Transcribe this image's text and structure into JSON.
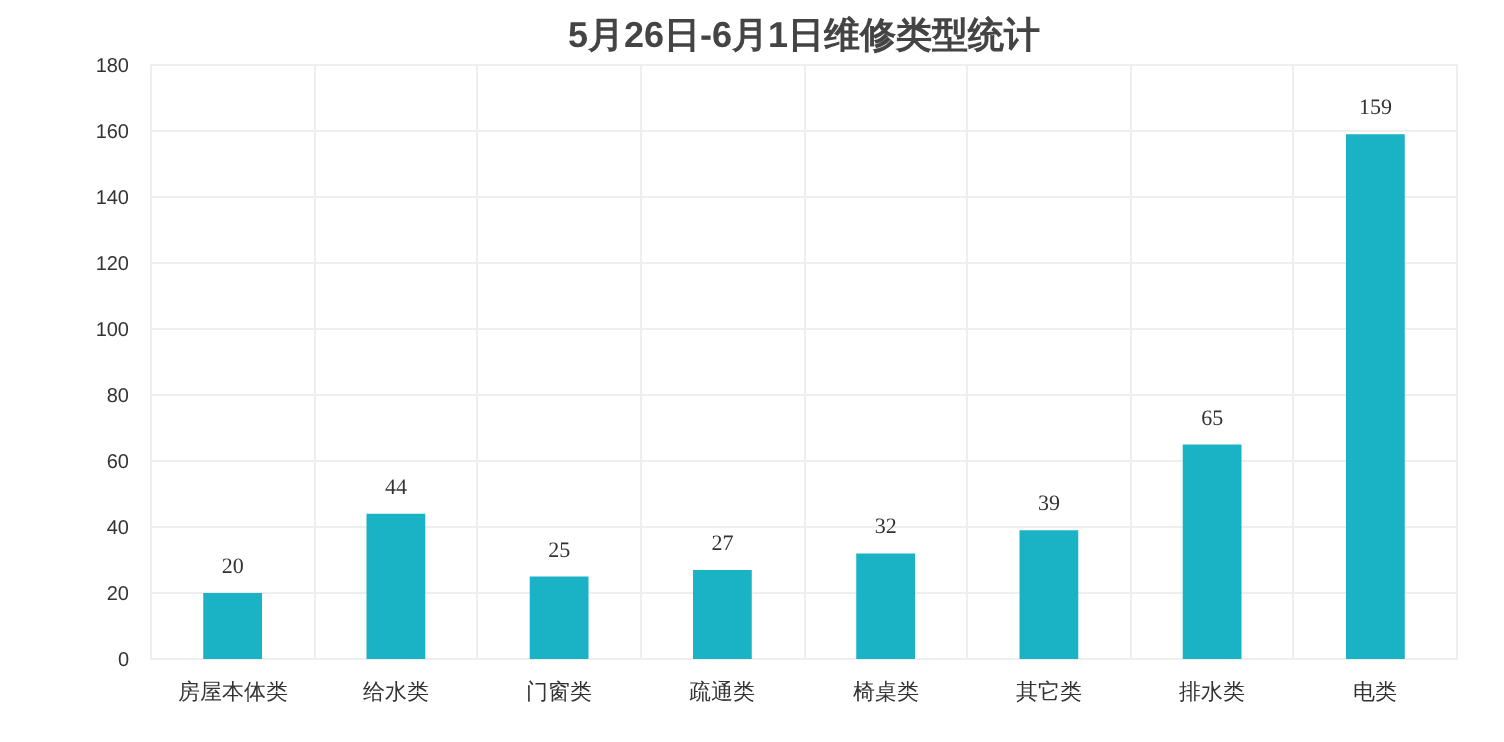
{
  "chart_data": {
    "type": "bar",
    "title": "5月26日-6月1日维修类型统计",
    "categories": [
      "房屋本体类",
      "给水类",
      "门窗类",
      "疏通类",
      "椅桌类",
      "其它类",
      "排水类",
      "电类"
    ],
    "values": [
      20,
      44,
      25,
      27,
      32,
      39,
      65,
      159
    ],
    "color": "#1ab3c6",
    "ylim": [
      0,
      180
    ],
    "yticks": [
      0,
      20,
      40,
      60,
      80,
      100,
      120,
      140,
      160,
      180
    ],
    "grid": true,
    "data_labels": true
  }
}
